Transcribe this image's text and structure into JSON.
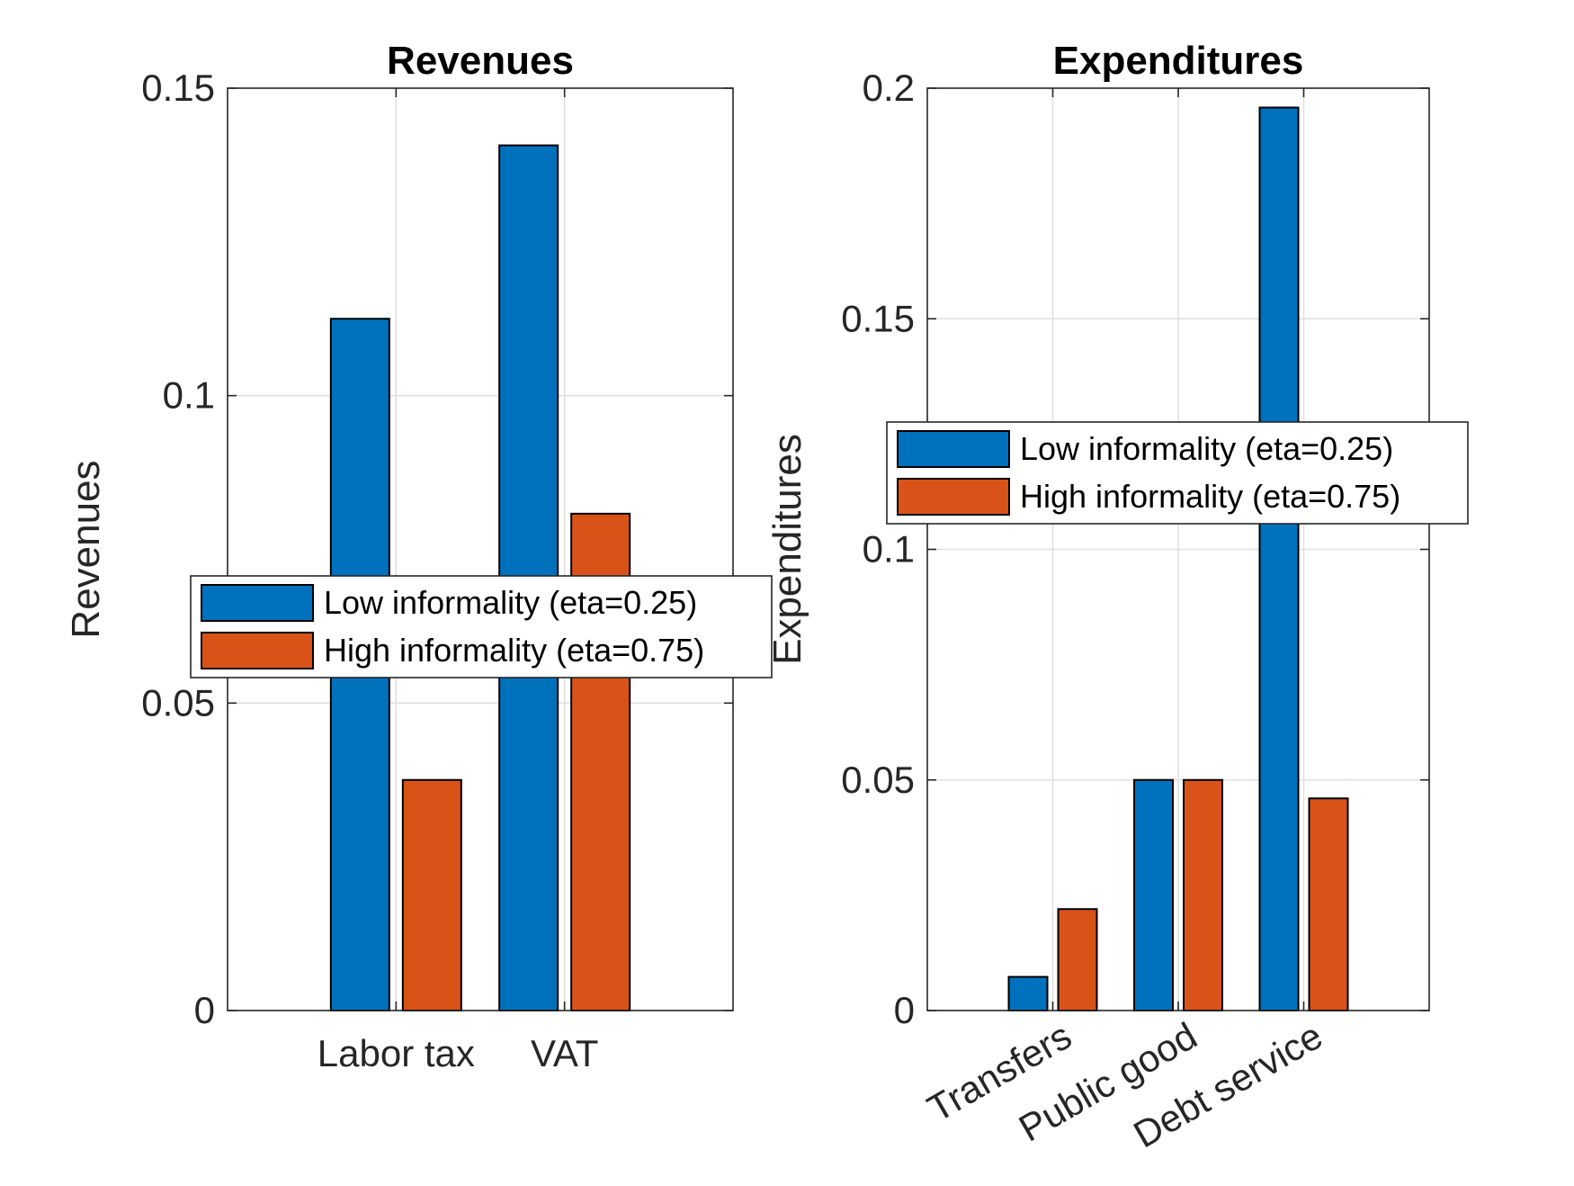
{
  "colors": {
    "series_low": "#0072BD",
    "series_high": "#D95319"
  },
  "chart_data": [
    {
      "type": "bar",
      "title": "Revenues",
      "xlabel": "",
      "ylabel": "Revenues",
      "ylim": [
        0,
        0.15
      ],
      "yticks": [
        0,
        0.05,
        0.1,
        0.15
      ],
      "ytick_labels": [
        "0",
        "0.05",
        "0.1",
        "0.15"
      ],
      "categories": [
        "Labor tax",
        "VAT"
      ],
      "series": [
        {
          "name": "Low informality (eta=0.25)",
          "values": [
            0.1125,
            0.1407
          ]
        },
        {
          "name": "High informality (eta=0.75)",
          "values": [
            0.0375,
            0.0808
          ]
        }
      ],
      "grid": true,
      "legend_position": "center-left",
      "xtick_rotation": 0
    },
    {
      "type": "bar",
      "title": "Expenditures",
      "xlabel": "",
      "ylabel": "Expenditures",
      "ylim": [
        0,
        0.2
      ],
      "yticks": [
        0,
        0.05,
        0.1,
        0.15,
        0.2
      ],
      "ytick_labels": [
        "0",
        "0.05",
        "0.1",
        "0.15",
        "0.2"
      ],
      "categories": [
        "Transfers",
        "Public good",
        "Debt service"
      ],
      "series": [
        {
          "name": "Low informality (eta=0.25)",
          "values": [
            0.0073,
            0.05,
            0.1958
          ]
        },
        {
          "name": "High informality (eta=0.75)",
          "values": [
            0.022,
            0.05,
            0.046
          ]
        }
      ],
      "grid": true,
      "legend_position": "upper-middle",
      "xtick_rotation": -30
    }
  ]
}
